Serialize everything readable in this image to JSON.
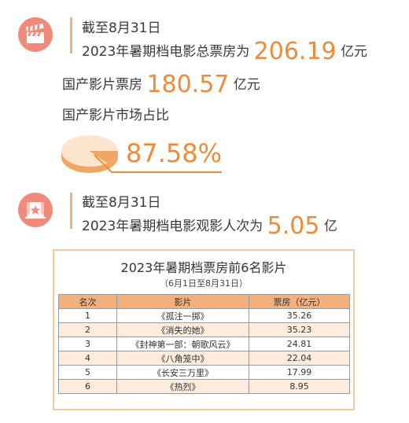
{
  "block1": {
    "line1": "截至8月31日",
    "line2_prefix": "2023年暑期档电影总票房为",
    "total_value": "206.19",
    "total_unit": "亿元"
  },
  "block2": {
    "label": "国产影片票房",
    "value": "180.57",
    "unit": "亿元"
  },
  "block3": {
    "label": "国产影片市场占比",
    "value": "87.58%",
    "share": 0.8758
  },
  "block4": {
    "line1": "截至8月31日",
    "line2_prefix": "2023年暑期档电影观影人次为",
    "value": "5.05",
    "unit": "亿"
  },
  "table": {
    "title": "2023年暑期档票房前6名影片",
    "subtitle": "（6月1日至8月31日）",
    "headers": [
      "名次",
      "影片",
      "票房（亿元）"
    ],
    "rows": [
      [
        "1",
        "《孤注一掷》",
        "35.26"
      ],
      [
        "2",
        "《消失的她》",
        "35.23"
      ],
      [
        "3",
        "《封神第一部：朝歌风云》",
        "24.81"
      ],
      [
        "4",
        "《八角笼中》",
        "22.04"
      ],
      [
        "5",
        "《长安三万里》",
        "17.99"
      ],
      [
        "6",
        "《热烈》",
        "8.95"
      ]
    ]
  },
  "colors": {
    "accent": "#ef8a3a",
    "icon_bg": "#f08a7a",
    "header_bg": "#f4b07c",
    "row_alt": "#fdebdc"
  },
  "icons": [
    "clapperboard-icon",
    "star-stage-icon",
    "pie-chart-icon"
  ]
}
